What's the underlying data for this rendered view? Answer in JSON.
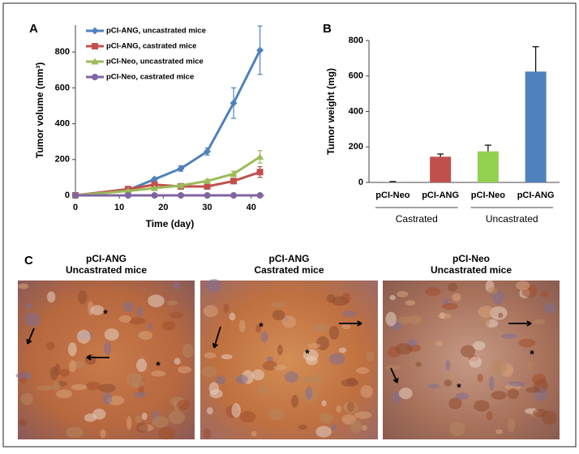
{
  "chart_data": [
    {
      "type": "line",
      "panel": "A",
      "x_label": "Time (day)",
      "y_label": "Tumor volume (mm³)",
      "x": [
        0,
        12,
        18,
        24,
        30,
        36,
        42
      ],
      "xlim": [
        0,
        43
      ],
      "xticks": [
        0,
        10,
        20,
        30,
        40
      ],
      "ylim": [
        0,
        950
      ],
      "yticks": [
        0,
        200,
        400,
        600,
        800
      ],
      "legend": "top-left",
      "series": [
        {
          "name": "pCI-ANG, uncastrated mice",
          "color": "#4f81bd",
          "marker": "diamond",
          "values": [
            0,
            30,
            90,
            150,
            245,
            515,
            810
          ],
          "errors": [
            0,
            5,
            10,
            15,
            20,
            85,
            135
          ]
        },
        {
          "name": "pCI-ANG, castrated mice",
          "color": "#c0504d",
          "marker": "square",
          "values": [
            0,
            35,
            60,
            50,
            50,
            80,
            130
          ],
          "errors": [
            0,
            5,
            10,
            10,
            10,
            15,
            30
          ]
        },
        {
          "name": "pCI-Neo, uncastrated mice",
          "color": "#9bbb59",
          "marker": "triangle",
          "values": [
            0,
            25,
            40,
            55,
            80,
            120,
            215
          ],
          "errors": [
            0,
            5,
            5,
            8,
            10,
            15,
            35
          ]
        },
        {
          "name": "pCI-Neo, castrated mice",
          "color": "#8064a2",
          "marker": "circle",
          "values": [
            0,
            0,
            0,
            0,
            0,
            0,
            0
          ],
          "errors": [
            0,
            0,
            0,
            0,
            0,
            0,
            0
          ]
        }
      ]
    },
    {
      "type": "bar",
      "panel": "B",
      "y_label": "Tumor weight (mg)",
      "categories": [
        "pCI-Neo",
        "pCI-ANG",
        "pCI-Neo",
        "pCI-ANG"
      ],
      "groups": [
        "Castrated",
        "Uncastrated"
      ],
      "values": [
        3,
        145,
        175,
        625
      ],
      "errors": [
        2,
        15,
        35,
        140
      ],
      "colors": [
        "#7f7f7f",
        "#c0504d",
        "#92d050",
        "#4f81bd"
      ],
      "ylim": [
        0,
        800
      ],
      "yticks": [
        0,
        200,
        400,
        600,
        800
      ]
    }
  ],
  "panel_c": {
    "label": "C",
    "images": [
      {
        "title": "pCI-ANG",
        "subtitle": "Uncastrated mice",
        "annotations": [
          "*",
          "*"
        ]
      },
      {
        "title": "pCI-ANG",
        "subtitle": "Castrated mice",
        "annotations": [
          "*",
          "*"
        ]
      },
      {
        "title": "pCI-Neo",
        "subtitle": "Uncastrated mice",
        "annotations": [
          "*",
          "*"
        ]
      }
    ]
  }
}
